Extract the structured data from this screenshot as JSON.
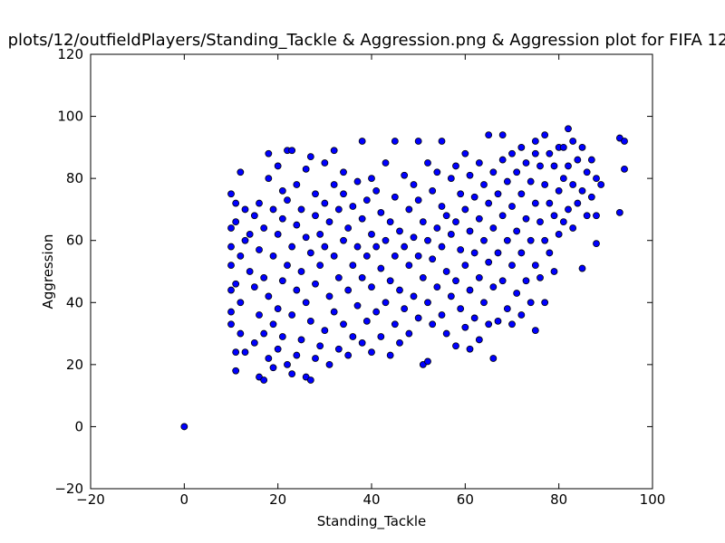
{
  "chart_data": {
    "type": "scatter",
    "title": "plots/12/outfieldPlayers/Standing_Tackle & Aggression.png & Aggression plot for FIFA 12",
    "xlabel": "Standing_Tackle",
    "ylabel": "Aggression",
    "xlim": [
      -20,
      100
    ],
    "ylim": [
      -20,
      120
    ],
    "xticks": [
      -20,
      0,
      20,
      40,
      60,
      80,
      100
    ],
    "yticks": [
      -20,
      0,
      20,
      40,
      60,
      80,
      100,
      120
    ],
    "grid": false,
    "marker_color": "#0000ff",
    "marker_edge_color": "#000000",
    "series": [
      {
        "values": [
          [
            0,
            0
          ],
          [
            10,
            75
          ],
          [
            10,
            64
          ],
          [
            10,
            58
          ],
          [
            10,
            52
          ],
          [
            10,
            44
          ],
          [
            10,
            37
          ],
          [
            10,
            33
          ],
          [
            11,
            24
          ],
          [
            11,
            18
          ],
          [
            11,
            46
          ],
          [
            11,
            66
          ],
          [
            11,
            72
          ],
          [
            12,
            82
          ],
          [
            12,
            55
          ],
          [
            12,
            40
          ],
          [
            12,
            30
          ],
          [
            13,
            24
          ],
          [
            13,
            60
          ],
          [
            13,
            70
          ],
          [
            14,
            50
          ],
          [
            14,
            62
          ],
          [
            15,
            27
          ],
          [
            15,
            45
          ],
          [
            15,
            68
          ],
          [
            16,
            16
          ],
          [
            16,
            36
          ],
          [
            16,
            57
          ],
          [
            16,
            72
          ],
          [
            17,
            15
          ],
          [
            17,
            30
          ],
          [
            17,
            48
          ],
          [
            17,
            64
          ],
          [
            18,
            22
          ],
          [
            18,
            42
          ],
          [
            18,
            80
          ],
          [
            18,
            88
          ],
          [
            19,
            19
          ],
          [
            19,
            33
          ],
          [
            19,
            55
          ],
          [
            19,
            70
          ],
          [
            20,
            25
          ],
          [
            20,
            38
          ],
          [
            20,
            62
          ],
          [
            20,
            84
          ],
          [
            21,
            29
          ],
          [
            21,
            47
          ],
          [
            21,
            67
          ],
          [
            21,
            76
          ],
          [
            22,
            89
          ],
          [
            22,
            20
          ],
          [
            22,
            52
          ],
          [
            22,
            73
          ],
          [
            23,
            17
          ],
          [
            23,
            36
          ],
          [
            23,
            58
          ],
          [
            23,
            89
          ],
          [
            24,
            23
          ],
          [
            24,
            44
          ],
          [
            24,
            65
          ],
          [
            24,
            78
          ],
          [
            25,
            28
          ],
          [
            25,
            50
          ],
          [
            25,
            70
          ],
          [
            26,
            16
          ],
          [
            26,
            40
          ],
          [
            26,
            61
          ],
          [
            26,
            83
          ],
          [
            27,
            15
          ],
          [
            27,
            34
          ],
          [
            27,
            56
          ],
          [
            27,
            87
          ],
          [
            28,
            22
          ],
          [
            28,
            46
          ],
          [
            28,
            68
          ],
          [
            28,
            75
          ],
          [
            29,
            26
          ],
          [
            29,
            52
          ],
          [
            29,
            62
          ],
          [
            30,
            85
          ],
          [
            30,
            31
          ],
          [
            30,
            58
          ],
          [
            30,
            72
          ],
          [
            31,
            20
          ],
          [
            31,
            42
          ],
          [
            31,
            66
          ],
          [
            32,
            89
          ],
          [
            32,
            37
          ],
          [
            32,
            55
          ],
          [
            32,
            78
          ],
          [
            33,
            25
          ],
          [
            33,
            48
          ],
          [
            33,
            70
          ],
          [
            34,
            82
          ],
          [
            34,
            33
          ],
          [
            34,
            60
          ],
          [
            34,
            75
          ],
          [
            35,
            23
          ],
          [
            35,
            44
          ],
          [
            35,
            64
          ],
          [
            36,
            29
          ],
          [
            36,
            52
          ],
          [
            36,
            71
          ],
          [
            37,
            39
          ],
          [
            37,
            58
          ],
          [
            37,
            79
          ],
          [
            38,
            92
          ],
          [
            38,
            27
          ],
          [
            38,
            48
          ],
          [
            38,
            67
          ],
          [
            39,
            34
          ],
          [
            39,
            55
          ],
          [
            39,
            73
          ],
          [
            40,
            24
          ],
          [
            40,
            45
          ],
          [
            40,
            62
          ],
          [
            40,
            80
          ],
          [
            41,
            37
          ],
          [
            41,
            58
          ],
          [
            41,
            76
          ],
          [
            42,
            29
          ],
          [
            42,
            51
          ],
          [
            42,
            69
          ],
          [
            43,
            85
          ],
          [
            43,
            40
          ],
          [
            43,
            60
          ],
          [
            44,
            23
          ],
          [
            44,
            47
          ],
          [
            44,
            66
          ],
          [
            45,
            92
          ],
          [
            45,
            33
          ],
          [
            45,
            55
          ],
          [
            45,
            74
          ],
          [
            46,
            27
          ],
          [
            46,
            44
          ],
          [
            46,
            63
          ],
          [
            47,
            38
          ],
          [
            47,
            58
          ],
          [
            47,
            81
          ],
          [
            48,
            30
          ],
          [
            48,
            52
          ],
          [
            48,
            70
          ],
          [
            49,
            42
          ],
          [
            49,
            61
          ],
          [
            49,
            78
          ],
          [
            50,
            92
          ],
          [
            50,
            35
          ],
          [
            50,
            55
          ],
          [
            50,
            73
          ],
          [
            51,
            20
          ],
          [
            51,
            48
          ],
          [
            51,
            66
          ],
          [
            52,
            21
          ],
          [
            52,
            40
          ],
          [
            52,
            60
          ],
          [
            52,
            85
          ],
          [
            53,
            33
          ],
          [
            53,
            54
          ],
          [
            53,
            76
          ],
          [
            54,
            45
          ],
          [
            54,
            64
          ],
          [
            54,
            82
          ],
          [
            55,
            92
          ],
          [
            55,
            36
          ],
          [
            55,
            58
          ],
          [
            55,
            71
          ],
          [
            56,
            30
          ],
          [
            56,
            50
          ],
          [
            56,
            68
          ],
          [
            57,
            42
          ],
          [
            57,
            62
          ],
          [
            57,
            80
          ],
          [
            58,
            26
          ],
          [
            58,
            47
          ],
          [
            58,
            66
          ],
          [
            58,
            84
          ],
          [
            59,
            38
          ],
          [
            59,
            57
          ],
          [
            59,
            75
          ],
          [
            60,
            88
          ],
          [
            60,
            32
          ],
          [
            60,
            52
          ],
          [
            60,
            70
          ],
          [
            61,
            25
          ],
          [
            61,
            44
          ],
          [
            61,
            63
          ],
          [
            61,
            81
          ],
          [
            62,
            35
          ],
          [
            62,
            56
          ],
          [
            62,
            74
          ],
          [
            63,
            28
          ],
          [
            63,
            48
          ],
          [
            63,
            67
          ],
          [
            63,
            85
          ],
          [
            64,
            40
          ],
          [
            64,
            60
          ],
          [
            64,
            78
          ],
          [
            65,
            94
          ],
          [
            65,
            33
          ],
          [
            65,
            53
          ],
          [
            65,
            72
          ],
          [
            66,
            22
          ],
          [
            66,
            45
          ],
          [
            66,
            64
          ],
          [
            66,
            82
          ],
          [
            67,
            34
          ],
          [
            67,
            56
          ],
          [
            67,
            75
          ],
          [
            68,
            94
          ],
          [
            68,
            47
          ],
          [
            68,
            68
          ],
          [
            68,
            86
          ],
          [
            69,
            38
          ],
          [
            69,
            60
          ],
          [
            69,
            79
          ],
          [
            70,
            33
          ],
          [
            70,
            52
          ],
          [
            70,
            71
          ],
          [
            70,
            88
          ],
          [
            71,
            43
          ],
          [
            71,
            63
          ],
          [
            71,
            82
          ],
          [
            72,
            36
          ],
          [
            72,
            56
          ],
          [
            72,
            75
          ],
          [
            72,
            90
          ],
          [
            73,
            47
          ],
          [
            73,
            67
          ],
          [
            73,
            85
          ],
          [
            74,
            40
          ],
          [
            74,
            60
          ],
          [
            74,
            79
          ],
          [
            75,
            92
          ],
          [
            75,
            31
          ],
          [
            75,
            52
          ],
          [
            75,
            72
          ],
          [
            75,
            88
          ],
          [
            76,
            48
          ],
          [
            76,
            66
          ],
          [
            76,
            84
          ],
          [
            77,
            40
          ],
          [
            77,
            60
          ],
          [
            77,
            78
          ],
          [
            77,
            94
          ],
          [
            78,
            56
          ],
          [
            78,
            72
          ],
          [
            78,
            88
          ],
          [
            79,
            50
          ],
          [
            79,
            68
          ],
          [
            79,
            84
          ],
          [
            80,
            90
          ],
          [
            80,
            62
          ],
          [
            80,
            76
          ],
          [
            81,
            66
          ],
          [
            81,
            80
          ],
          [
            81,
            90
          ],
          [
            82,
            70
          ],
          [
            82,
            84
          ],
          [
            82,
            96
          ],
          [
            83,
            64
          ],
          [
            83,
            78
          ],
          [
            83,
            92
          ],
          [
            84,
            72
          ],
          [
            84,
            86
          ],
          [
            85,
            51
          ],
          [
            85,
            76
          ],
          [
            85,
            90
          ],
          [
            86,
            68
          ],
          [
            86,
            82
          ],
          [
            87,
            74
          ],
          [
            87,
            86
          ],
          [
            88,
            59
          ],
          [
            88,
            68
          ],
          [
            88,
            80
          ],
          [
            89,
            78
          ],
          [
            93,
            93
          ],
          [
            93,
            69
          ],
          [
            94,
            92
          ],
          [
            94,
            83
          ]
        ]
      }
    ]
  }
}
